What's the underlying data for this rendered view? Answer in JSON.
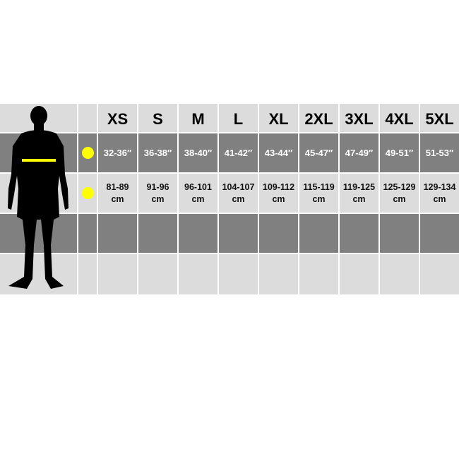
{
  "sizes": [
    "XS",
    "S",
    "M",
    "L",
    "XL",
    "2XL",
    "3XL",
    "4XL",
    "5XL"
  ],
  "chest_inches": [
    "32-36″",
    "36-38″",
    "38-40″",
    "41-42″",
    "43-44″",
    "45-47″",
    "47-49″",
    "49-51″",
    "51-53″"
  ],
  "chest_cm": [
    "81-89",
    "91-96",
    "96-101",
    "104-107",
    "109-112",
    "115-119",
    "119-125",
    "125-129",
    "129-134"
  ],
  "cm_unit": "cm",
  "colors": {
    "marker": "#ffff00",
    "light_row": "#dcdcdc",
    "dark_row": "#808080"
  },
  "icons": {
    "figure": "human-silhouette-icon",
    "marker": "yellow-dot-icon"
  }
}
